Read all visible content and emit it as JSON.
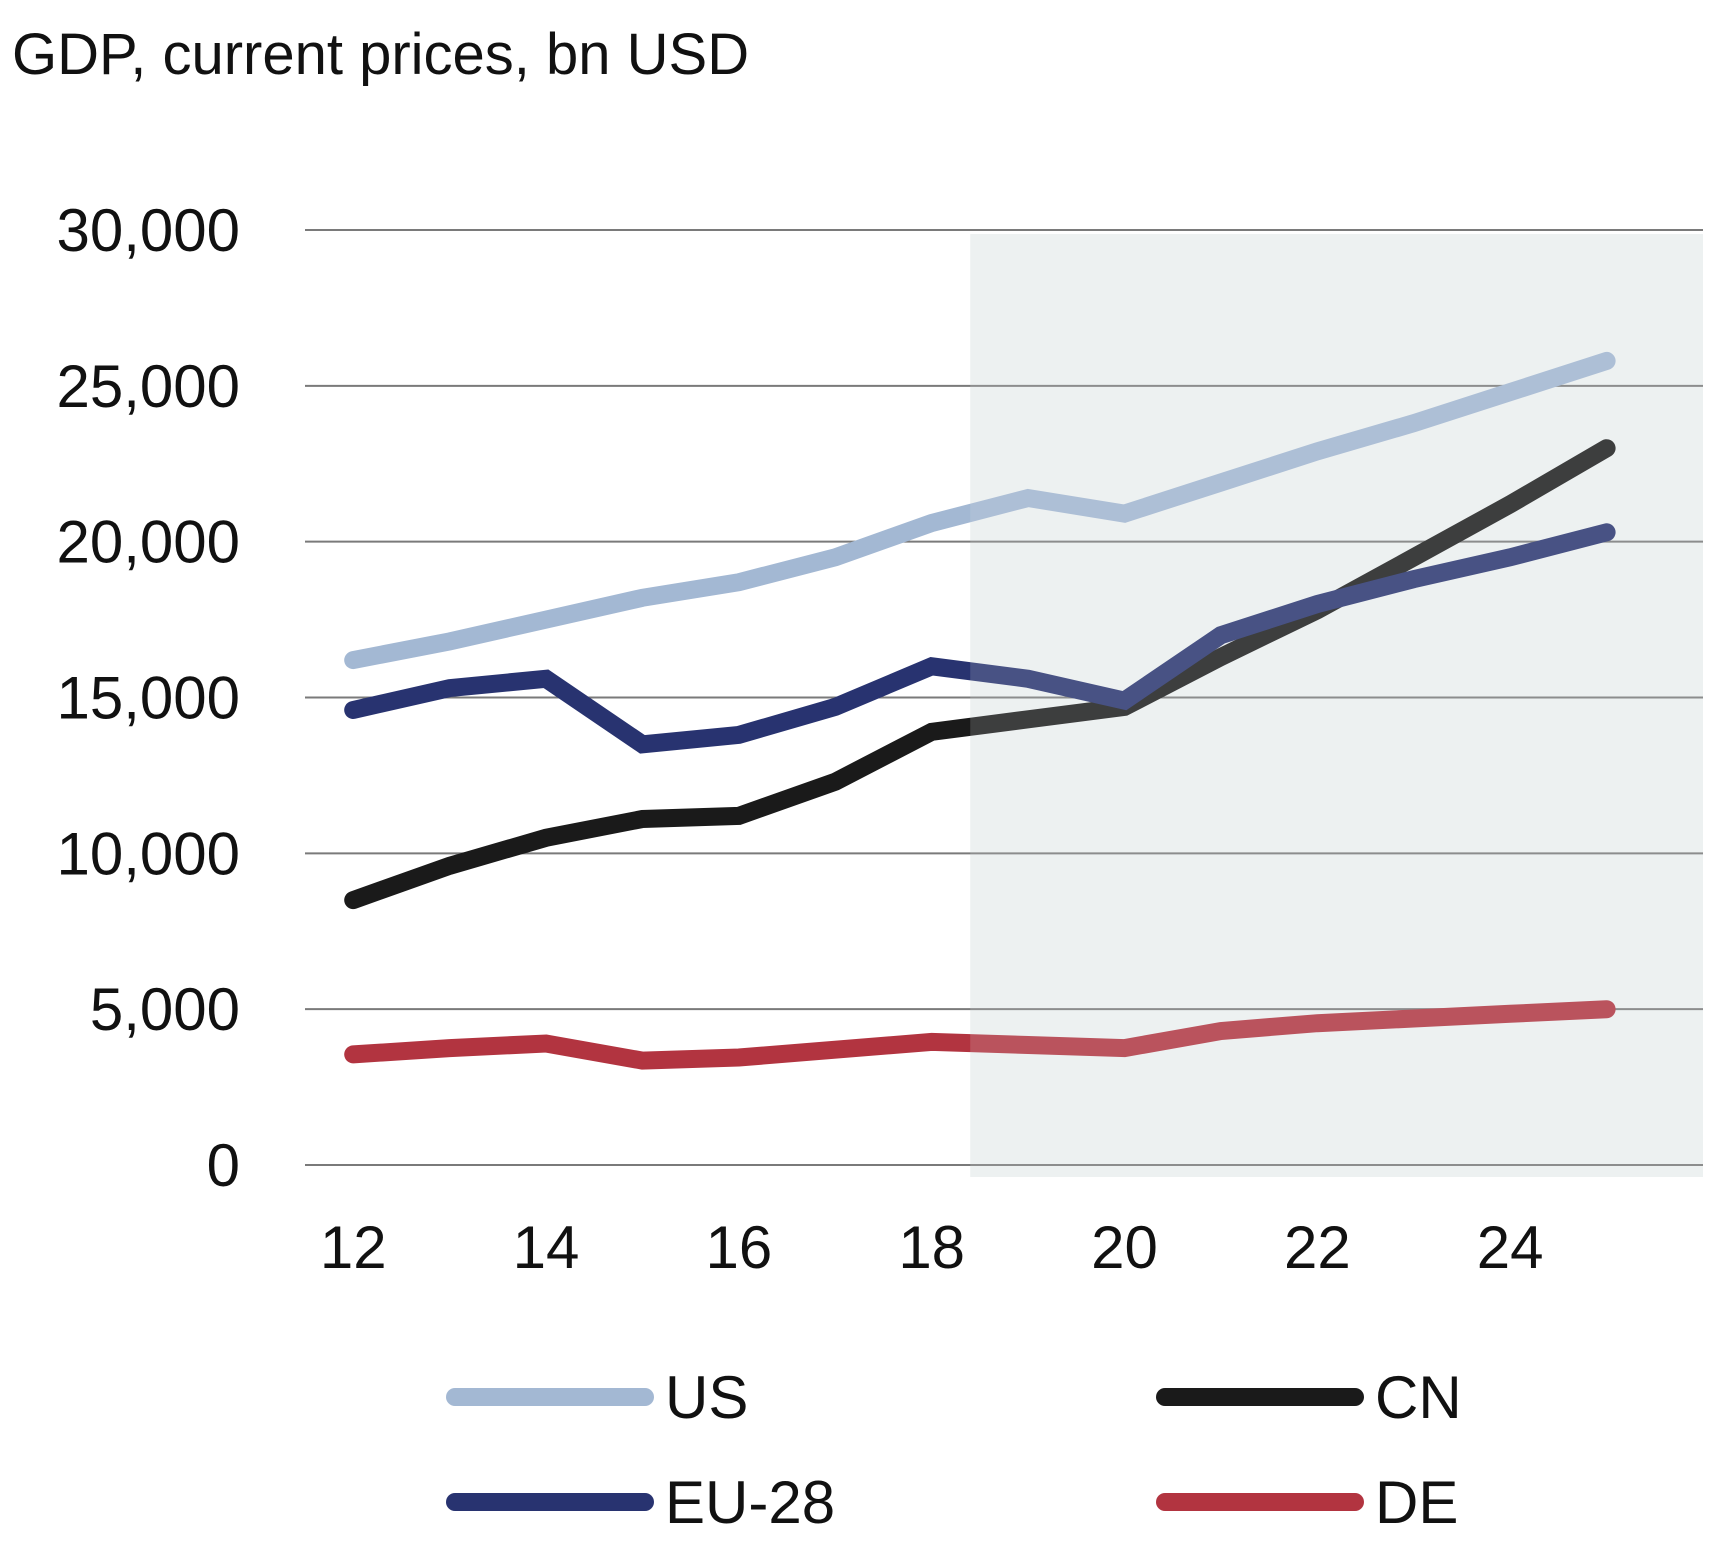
{
  "chart_data": {
    "type": "line",
    "title": "GDP, current prices, bn USD",
    "xlabel": "",
    "ylabel": "",
    "x": [
      12,
      13,
      14,
      15,
      16,
      17,
      18,
      19,
      20,
      21,
      22,
      23,
      24,
      25
    ],
    "x_tick_labels": [
      "12",
      "14",
      "16",
      "18",
      "20",
      "22",
      "24"
    ],
    "y_tick_labels": [
      "0",
      "5,000",
      "10,000",
      "15,000",
      "20,000",
      "25,000",
      "30,000"
    ],
    "ylim": [
      0,
      30000
    ],
    "grid": "horizontal",
    "forecast_shading_from_x": 18.4,
    "series": [
      {
        "name": "US",
        "color": "#a3b8d3",
        "values": [
          16200,
          16800,
          17500,
          18200,
          18700,
          19500,
          20600,
          21400,
          20900,
          21900,
          22900,
          23800,
          24800,
          25800
        ]
      },
      {
        "name": "CN",
        "color": "#1a1a1a",
        "values": [
          8500,
          9600,
          10500,
          11100,
          11200,
          12300,
          13900,
          14300,
          14700,
          16300,
          17800,
          19500,
          21200,
          23000
        ]
      },
      {
        "name": "EU-28",
        "color": "#283370",
        "values": [
          14600,
          15300,
          15600,
          13500,
          13800,
          14700,
          16000,
          15600,
          14900,
          17000,
          18000,
          18800,
          19500,
          20300
        ]
      },
      {
        "name": "DE",
        "color": "#b23440",
        "values": [
          3550,
          3750,
          3900,
          3350,
          3450,
          3700,
          3950,
          3850,
          3750,
          4300,
          4550,
          4700,
          4850,
          5000
        ]
      }
    ],
    "legend_position": "bottom"
  }
}
